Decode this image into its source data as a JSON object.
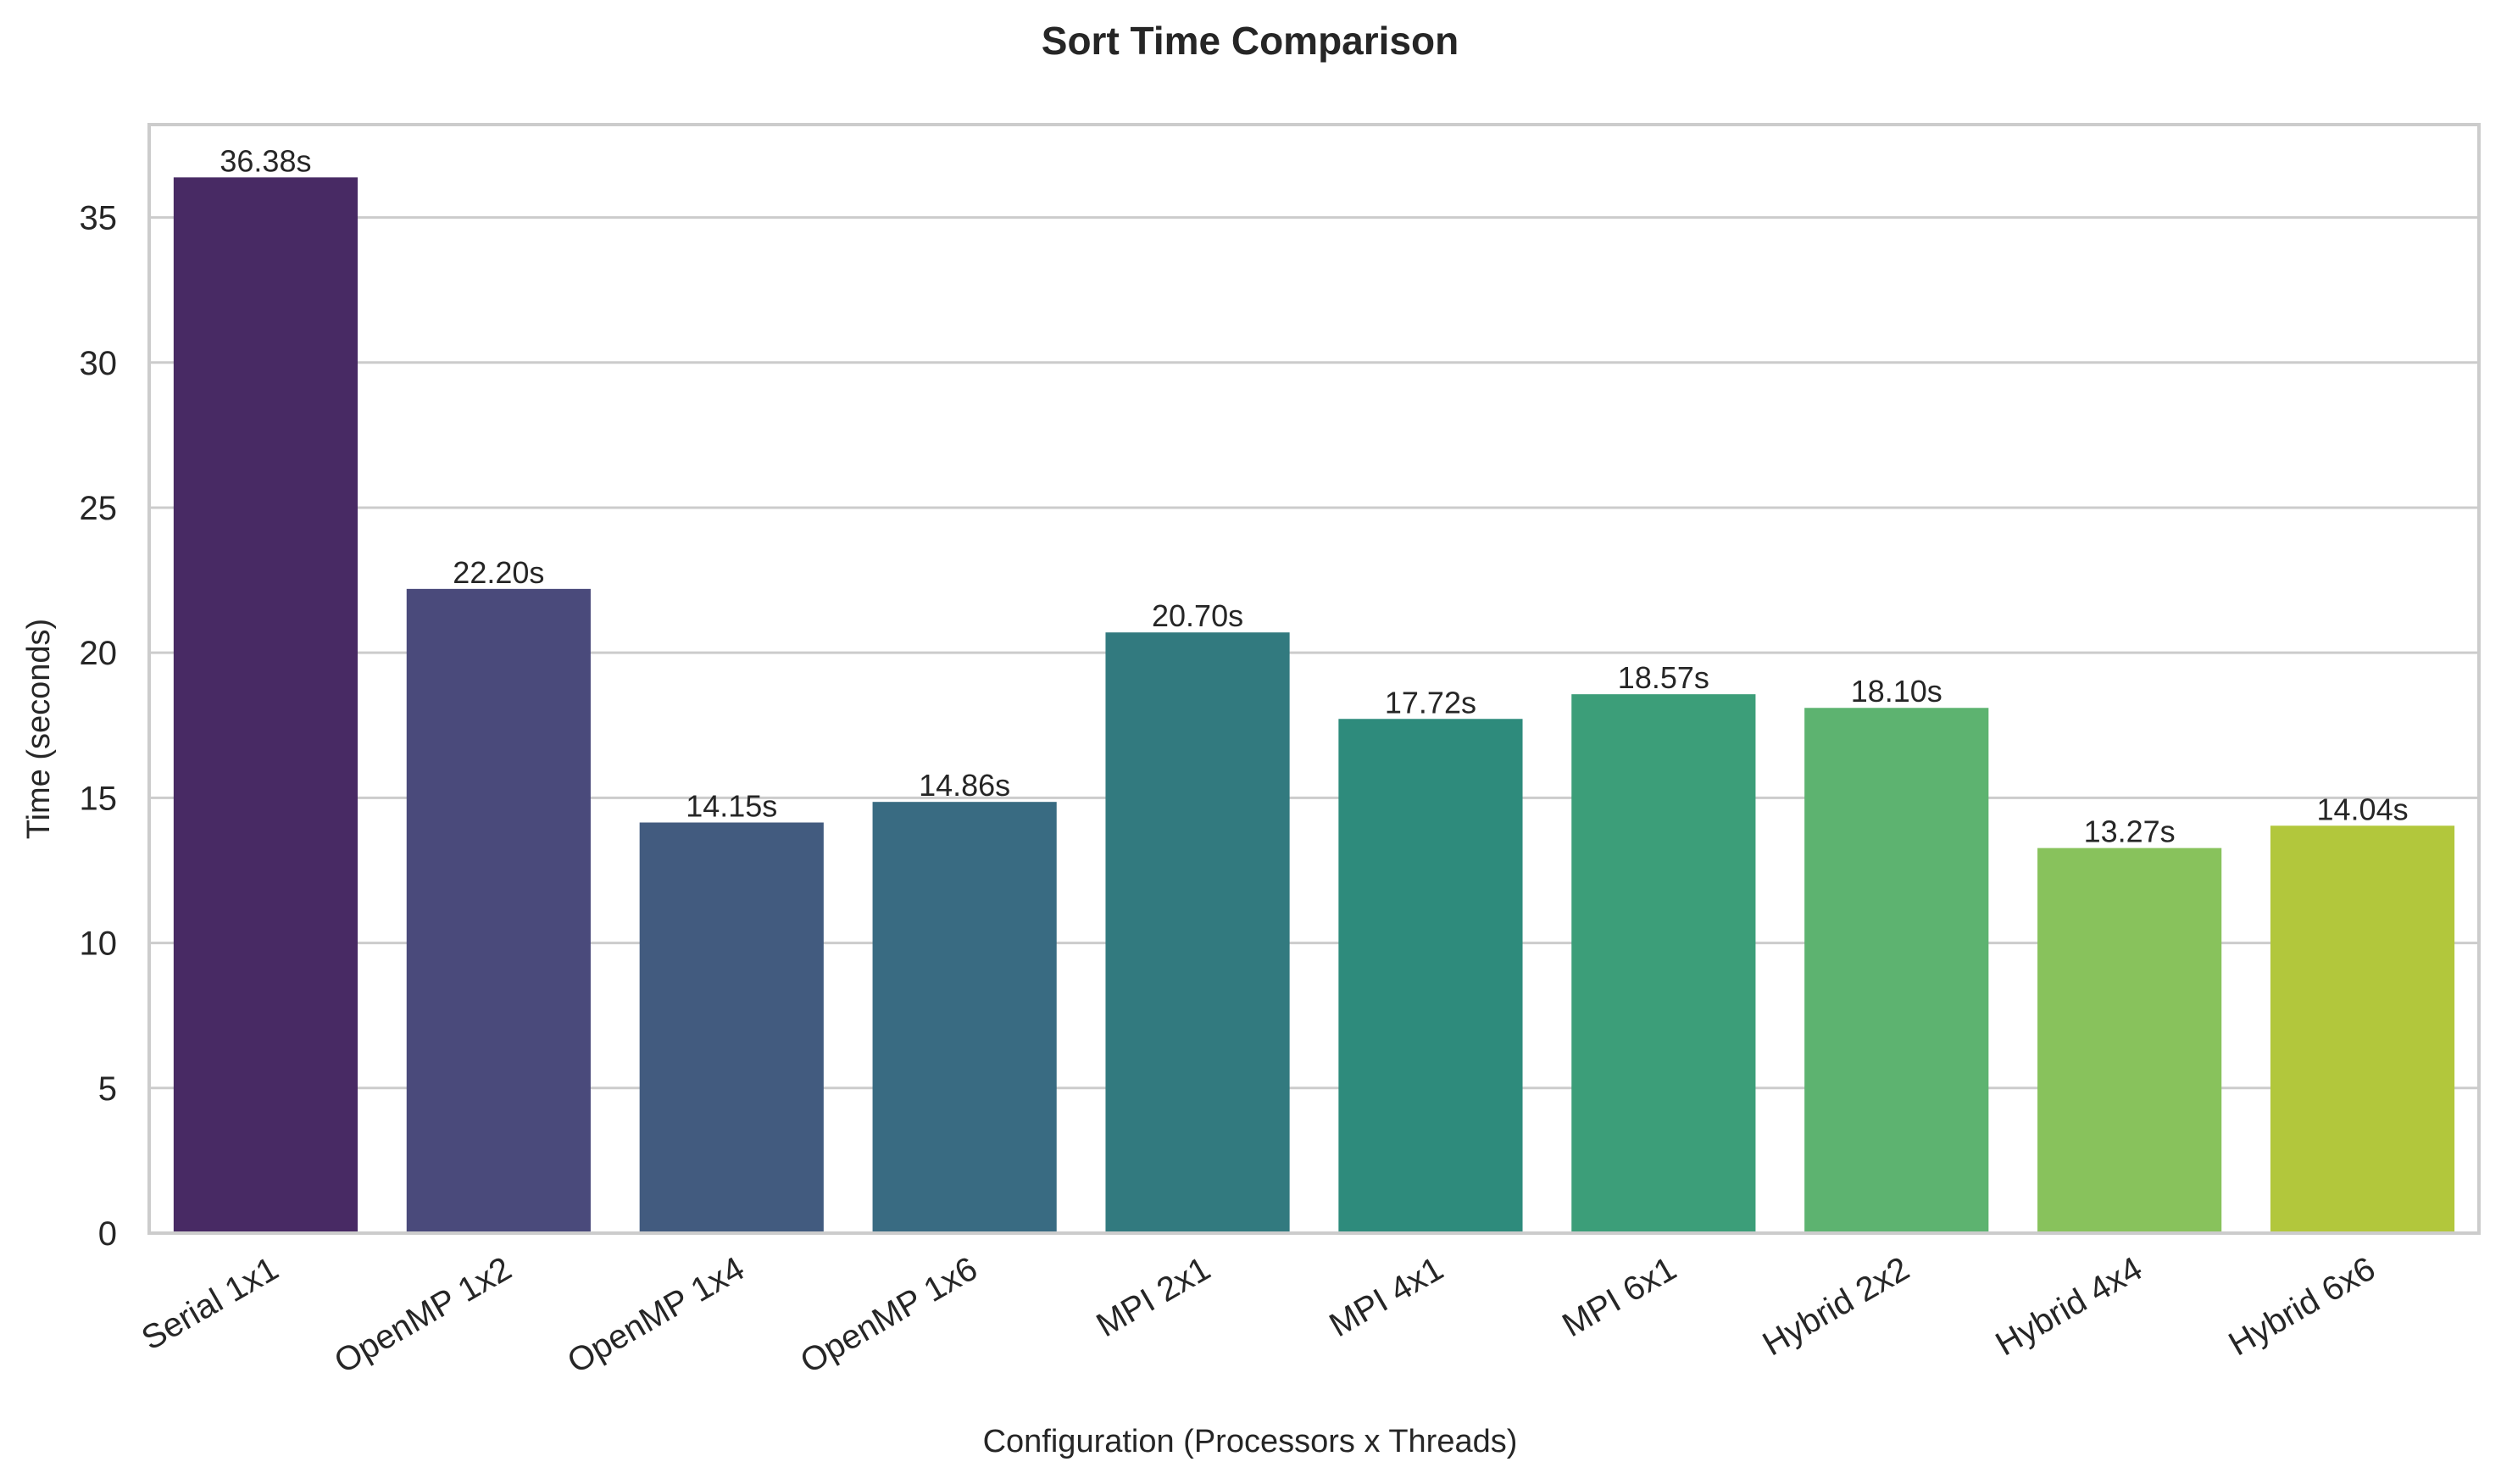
{
  "chart_data": {
    "type": "bar",
    "title": "Sort Time Comparison",
    "xlabel": "Configuration (Processors x Threads)",
    "ylabel": "Time (seconds)",
    "categories": [
      "Serial 1x1",
      "OpenMP 1x2",
      "OpenMP 1x4",
      "OpenMP 1x6",
      "MPI 2x1",
      "MPI 4x1",
      "MPI 6x1",
      "Hybrid 2x2",
      "Hybrid 4x4",
      "Hybrid 6x6"
    ],
    "values": [
      36.38,
      22.2,
      14.15,
      14.86,
      20.7,
      17.72,
      18.57,
      18.1,
      13.27,
      14.04
    ],
    "data_labels": [
      "36.38s",
      "22.20s",
      "14.15s",
      "14.86s",
      "20.70s",
      "17.72s",
      "18.57s",
      "18.10s",
      "13.27s",
      "14.04s"
    ],
    "colors": [
      "#482a64",
      "#4a4a7b",
      "#425b7f",
      "#396b82",
      "#327a7f",
      "#2e8b7c",
      "#3c9e79",
      "#5db370",
      "#88c25c",
      "#b2c73c"
    ],
    "ylim": [
      0,
      38.2
    ],
    "yticks": [
      0,
      5,
      10,
      15,
      20,
      25,
      30,
      35
    ],
    "grid": "y",
    "legend": "none"
  }
}
